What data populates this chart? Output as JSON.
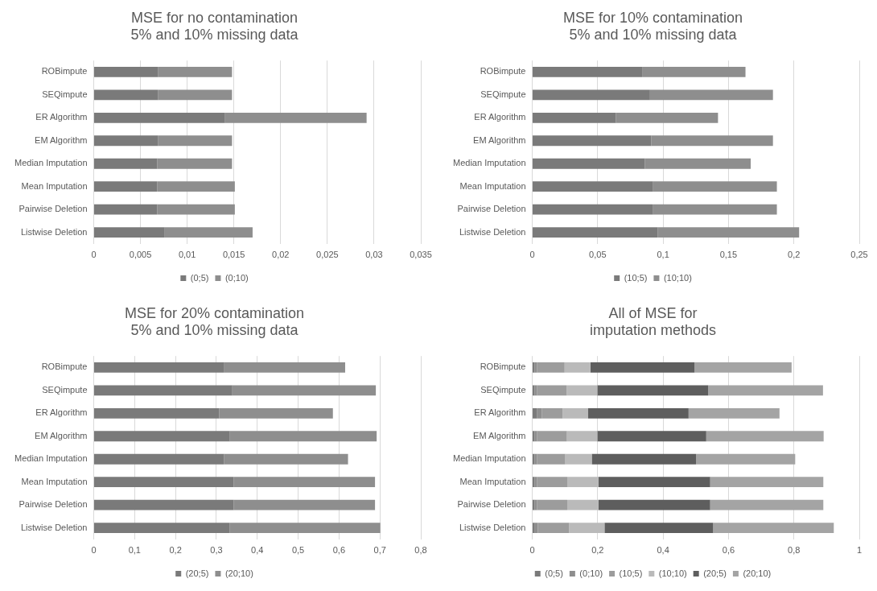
{
  "chart_data": [
    {
      "type": "bar",
      "orientation": "horizontal",
      "stacked": true,
      "title": "MSE for no contamination\n5% and 10% missing data",
      "categories": [
        "ROBimpute",
        "SEQimpute",
        "ER Algorithm",
        "EM Algorithm",
        "Median Imputation",
        "Mean Imputation",
        "Pairwise Deletion",
        "Listwise Deletion"
      ],
      "series": [
        {
          "name": "(0;5)",
          "color": "#7a7a7a",
          "values": [
            0.0069,
            0.0069,
            0.014,
            0.0069,
            0.0068,
            0.0068,
            0.0068,
            0.0076
          ]
        },
        {
          "name": "(0;10)",
          "color": "#8e8e8e",
          "values": [
            0.0079,
            0.0079,
            0.0152,
            0.0079,
            0.008,
            0.0083,
            0.0083,
            0.0094
          ]
        }
      ],
      "xlim": [
        0,
        0.035
      ],
      "xticks": [
        {
          "value": 0,
          "label": "0"
        },
        {
          "value": 0.005,
          "label": "0,005"
        },
        {
          "value": 0.01,
          "label": "0,01"
        },
        {
          "value": 0.015,
          "label": "0,015"
        },
        {
          "value": 0.02,
          "label": "0,02"
        },
        {
          "value": 0.025,
          "label": "0,025"
        },
        {
          "value": 0.03,
          "label": "0,03"
        },
        {
          "value": 0.035,
          "label": "0,035"
        }
      ],
      "grid": "x",
      "legend": "bottom"
    },
    {
      "type": "bar",
      "orientation": "horizontal",
      "stacked": true,
      "title": "MSE for 10% contamination\n5% and 10% missing data",
      "categories": [
        "ROBimpute",
        "SEQimpute",
        "ER Algorithm",
        "EM Algorithm",
        "Median Imputation",
        "Mean Imputation",
        "Pairwise Deletion",
        "Listwise Deletion"
      ],
      "series": [
        {
          "name": "(10;5)",
          "color": "#7a7a7a",
          "values": [
            0.084,
            0.09,
            0.064,
            0.091,
            0.086,
            0.092,
            0.092,
            0.096
          ]
        },
        {
          "name": "(10;10)",
          "color": "#8e8e8e",
          "values": [
            0.079,
            0.094,
            0.078,
            0.093,
            0.081,
            0.095,
            0.095,
            0.108
          ]
        }
      ],
      "xlim": [
        0,
        0.25
      ],
      "xticks": [
        {
          "value": 0,
          "label": "0"
        },
        {
          "value": 0.05,
          "label": "0,05"
        },
        {
          "value": 0.1,
          "label": "0,1"
        },
        {
          "value": 0.15,
          "label": "0,15"
        },
        {
          "value": 0.2,
          "label": "0,2"
        },
        {
          "value": 0.25,
          "label": "0,25"
        }
      ],
      "grid": "x",
      "legend": "bottom"
    },
    {
      "type": "bar",
      "orientation": "horizontal",
      "stacked": true,
      "title": "MSE for 20% contamination\n5% and 10% missing data",
      "categories": [
        "ROBimpute",
        "SEQimpute",
        "ER Algorithm",
        "EM Algorithm",
        "Median Imputation",
        "Mean Imputation",
        "Pairwise Deletion",
        "Listwise Deletion"
      ],
      "series": [
        {
          "name": "(20;5)",
          "color": "#7a7a7a",
          "values": [
            0.318,
            0.339,
            0.307,
            0.333,
            0.319,
            0.342,
            0.342,
            0.332
          ]
        },
        {
          "name": "(20;10)",
          "color": "#8e8e8e",
          "values": [
            0.297,
            0.351,
            0.278,
            0.359,
            0.303,
            0.346,
            0.346,
            0.369
          ]
        }
      ],
      "xlim": [
        0,
        0.8
      ],
      "xticks": [
        {
          "value": 0,
          "label": "0"
        },
        {
          "value": 0.1,
          "label": "0,1"
        },
        {
          "value": 0.2,
          "label": "0,2"
        },
        {
          "value": 0.3,
          "label": "0,3"
        },
        {
          "value": 0.4,
          "label": "0,4"
        },
        {
          "value": 0.5,
          "label": "0,5"
        },
        {
          "value": 0.6,
          "label": "0,6"
        },
        {
          "value": 0.7,
          "label": "0,7"
        },
        {
          "value": 0.8,
          "label": "0,8"
        }
      ],
      "grid": "x",
      "legend": "bottom"
    },
    {
      "type": "bar",
      "orientation": "horizontal",
      "stacked": true,
      "title": "All of MSE for\nimputation methods",
      "categories": [
        "ROBimpute",
        "SEQimpute",
        "ER Algorithm",
        "EM Algorithm",
        "Median Imputation",
        "Mean Imputation",
        "Pairwise Deletion",
        "Listwise Deletion"
      ],
      "series": [
        {
          "name": "(0;5)",
          "color": "#7a7a7a",
          "values": [
            0.007,
            0.007,
            0.014,
            0.007,
            0.007,
            0.007,
            0.007,
            0.008
          ]
        },
        {
          "name": "(0;10)",
          "color": "#8e8e8e",
          "values": [
            0.008,
            0.008,
            0.015,
            0.008,
            0.008,
            0.008,
            0.008,
            0.009
          ]
        },
        {
          "name": "(10;5)",
          "color": "#9c9c9c",
          "values": [
            0.084,
            0.09,
            0.064,
            0.091,
            0.086,
            0.092,
            0.092,
            0.096
          ]
        },
        {
          "name": "(10;10)",
          "color": "#bababa",
          "values": [
            0.079,
            0.094,
            0.078,
            0.093,
            0.081,
            0.095,
            0.095,
            0.108
          ]
        },
        {
          "name": "(20;5)",
          "color": "#5e5e5e",
          "values": [
            0.318,
            0.339,
            0.307,
            0.333,
            0.319,
            0.342,
            0.342,
            0.332
          ]
        },
        {
          "name": "(20;10)",
          "color": "#a4a4a4",
          "values": [
            0.297,
            0.351,
            0.278,
            0.359,
            0.303,
            0.346,
            0.346,
            0.369
          ]
        }
      ],
      "xlim": [
        0,
        1
      ],
      "xticks": [
        {
          "value": 0,
          "label": "0"
        },
        {
          "value": 0.2,
          "label": "0,2"
        },
        {
          "value": 0.4,
          "label": "0,4"
        },
        {
          "value": 0.6,
          "label": "0,6"
        },
        {
          "value": 0.8,
          "label": "0,8"
        },
        {
          "value": 1,
          "label": "1"
        }
      ],
      "grid": "x",
      "legend": "bottom"
    }
  ]
}
